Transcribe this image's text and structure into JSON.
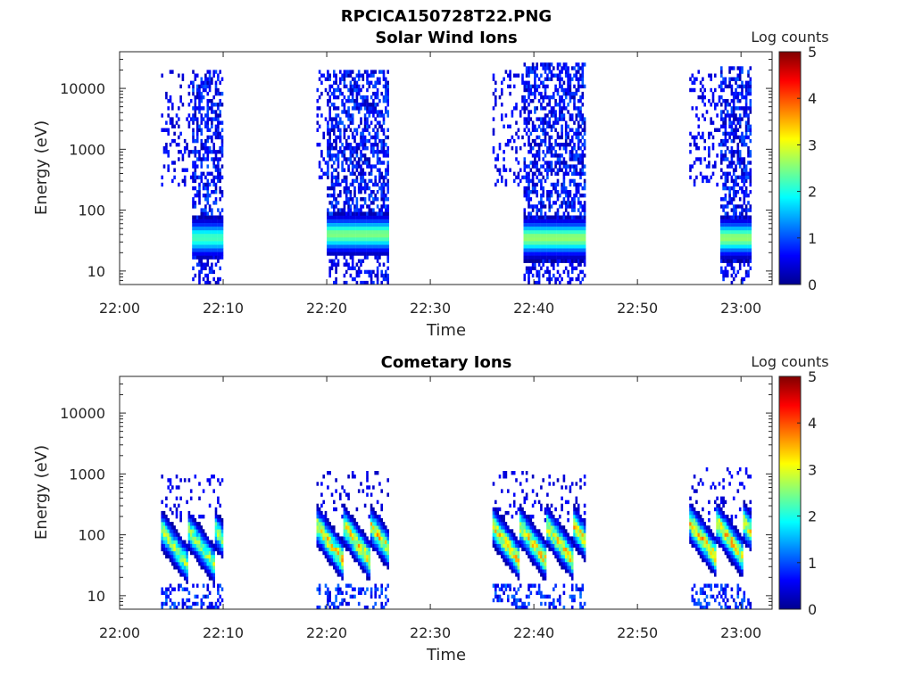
{
  "figure_title": "RPCICA150728T22.PNG",
  "chart_data": [
    {
      "type": "heatmap",
      "title": "Solar Wind Ions",
      "xlabel": "Time",
      "ylabel": "Energy (eV)",
      "x_ticks": [
        "22:00",
        "22:10",
        "22:20",
        "22:30",
        "22:40",
        "22:50",
        "23:00"
      ],
      "y_ticks": [
        "10",
        "100",
        "1000",
        "10000"
      ],
      "y_scale": "log",
      "ylim": [
        6,
        40000
      ],
      "xlim": [
        "22:00",
        "23:03"
      ],
      "colorbar": {
        "label": "Log counts",
        "min": 0,
        "max": 5,
        "ticks": [
          "0",
          "1",
          "2",
          "3",
          "4",
          "5"
        ],
        "colormap": "jet"
      },
      "bursts": [
        {
          "start": "22:04",
          "end": "22:10",
          "core_start": "22:07",
          "emax": 20000,
          "emin": 6,
          "peak_energy": 35,
          "peak_log_counts": 2.2
        },
        {
          "start": "22:19",
          "end": "22:26",
          "core_start": "22:20",
          "emax": 20000,
          "emin": 6,
          "peak_energy": 40,
          "peak_log_counts": 2.5
        },
        {
          "start": "22:36",
          "end": "22:45",
          "core_start": "22:39",
          "emax": 25000,
          "emin": 6,
          "peak_energy": 35,
          "peak_log_counts": 2.6
        },
        {
          "start": "22:55",
          "end": "23:01",
          "core_start": "22:58",
          "emax": 22000,
          "emin": 6,
          "peak_energy": 35,
          "peak_log_counts": 2.6
        }
      ]
    },
    {
      "type": "heatmap",
      "title": "Cometary Ions",
      "xlabel": "Time",
      "ylabel": "Energy (eV)",
      "x_ticks": [
        "22:00",
        "22:10",
        "22:20",
        "22:30",
        "22:40",
        "22:50",
        "23:00"
      ],
      "y_ticks": [
        "10",
        "100",
        "1000",
        "10000"
      ],
      "y_scale": "log",
      "ylim": [
        6,
        40000
      ],
      "xlim": [
        "22:00",
        "23:03"
      ],
      "colorbar": {
        "label": "Log counts",
        "min": 0,
        "max": 5,
        "ticks": [
          "0",
          "1",
          "2",
          "3",
          "4",
          "5"
        ],
        "colormap": "jet"
      },
      "bursts": [
        {
          "start": "22:04",
          "end": "22:10",
          "emax": 1000,
          "emin": 6,
          "peak_energy": 30,
          "peak_log_counts": 3.2
        },
        {
          "start": "22:19",
          "end": "22:26",
          "emax": 1100,
          "emin": 6,
          "peak_energy": 35,
          "peak_log_counts": 3.8
        },
        {
          "start": "22:36",
          "end": "22:45",
          "emax": 1100,
          "emin": 6,
          "peak_energy": 35,
          "peak_log_counts": 3.8
        },
        {
          "start": "22:55",
          "end": "23:01",
          "emax": 1200,
          "emin": 6,
          "peak_energy": 40,
          "peak_log_counts": 3.9
        }
      ]
    }
  ]
}
